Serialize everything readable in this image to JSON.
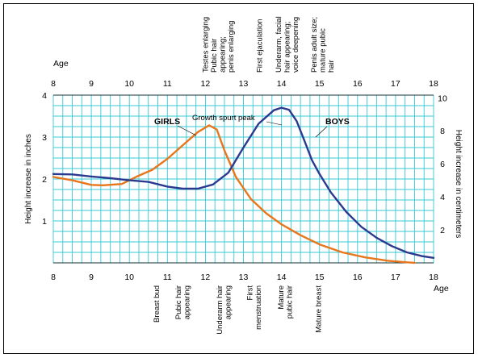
{
  "chart_data": {
    "type": "line",
    "x_range": [
      8,
      18
    ],
    "x_ticks": [
      "8",
      "9",
      "10",
      "11",
      "12",
      "13",
      "14",
      "15",
      "16",
      "17",
      "18"
    ],
    "top_axis_label": "Age",
    "bottom_axis_label": "Age",
    "y_left": {
      "label": "Height increase in inches",
      "range": [
        0,
        4
      ],
      "ticks": [
        "1",
        "2",
        "3",
        "4"
      ]
    },
    "y_right": {
      "label": "Height increase in centimeters",
      "range": [
        0,
        10.16
      ],
      "ticks": [
        "2",
        "4",
        "6",
        "8",
        "10"
      ]
    },
    "grid": true,
    "series": [
      {
        "name": "GIRLS",
        "color": "#e8761c",
        "x": [
          8,
          8.5,
          9,
          9.3,
          9.8,
          10.2,
          10.6,
          11.0,
          11.4,
          11.8,
          12.1,
          12.3,
          12.5,
          12.8,
          13.2,
          13.6,
          14.0,
          14.5,
          15.0,
          15.6,
          16.2,
          16.8,
          17.5
        ],
        "y": [
          2.05,
          1.97,
          1.86,
          1.85,
          1.88,
          2.06,
          2.22,
          2.48,
          2.8,
          3.12,
          3.28,
          3.18,
          2.68,
          2.05,
          1.52,
          1.18,
          0.92,
          0.66,
          0.44,
          0.25,
          0.13,
          0.05,
          0.0
        ]
      },
      {
        "name": "BOYS",
        "color": "#2b3a8e",
        "x": [
          8,
          8.5,
          9,
          9.5,
          10,
          10.5,
          11,
          11.4,
          11.8,
          12.2,
          12.6,
          13.0,
          13.4,
          13.8,
          14.0,
          14.2,
          14.4,
          14.6,
          14.8,
          15.0,
          15.3,
          15.7,
          16.1,
          16.5,
          16.9,
          17.3,
          17.7,
          18.0
        ],
        "y": [
          2.12,
          2.11,
          2.06,
          2.02,
          1.97,
          1.93,
          1.82,
          1.77,
          1.77,
          1.87,
          2.15,
          2.75,
          3.32,
          3.64,
          3.7,
          3.65,
          3.38,
          2.92,
          2.45,
          2.12,
          1.68,
          1.22,
          0.86,
          0.6,
          0.4,
          0.25,
          0.16,
          0.12
        ]
      }
    ],
    "series_labels": [
      "GIRLS",
      "BOYS"
    ],
    "annotation": "Growth spurt peak",
    "top_events": [
      {
        "x": 12.0,
        "lines": [
          "Testes enlarging"
        ]
      },
      {
        "x": 12.45,
        "lines": [
          "Pubic hair",
          "appearing;",
          "penis enlarging"
        ]
      },
      {
        "x": 13.42,
        "lines": [
          "First ejaculation"
        ]
      },
      {
        "x": 14.15,
        "lines": [
          "Underarm, facial",
          "hair appearing;",
          "voice deepening"
        ]
      },
      {
        "x": 15.08,
        "lines": [
          "Penis adult size;",
          "mature pubic",
          "hair"
        ]
      }
    ],
    "bottom_events": [
      {
        "x": 10.72,
        "lines": [
          "Breast bud"
        ]
      },
      {
        "x": 11.4,
        "lines": [
          "Pubic hair",
          "appearing"
        ]
      },
      {
        "x": 12.48,
        "lines": [
          "Underarm hair",
          "appearing"
        ]
      },
      {
        "x": 13.28,
        "lines": [
          "First",
          "menstruation"
        ]
      },
      {
        "x": 14.1,
        "lines": [
          "Mature",
          "pubic hair"
        ]
      },
      {
        "x": 14.97,
        "lines": [
          "Mature breast"
        ]
      }
    ]
  }
}
